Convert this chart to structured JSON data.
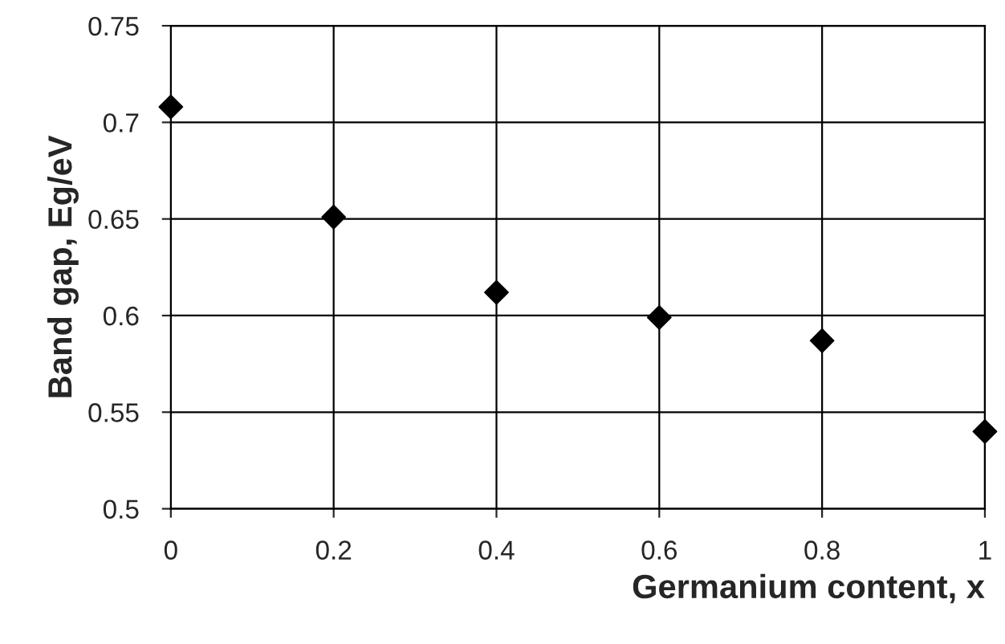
{
  "chart_data": {
    "type": "scatter",
    "xlabel": "Germanium content, x",
    "ylabel": "Band gap, Eg/eV",
    "x": [
      0,
      0.2,
      0.4,
      0.6,
      0.8,
      1
    ],
    "series": [
      {
        "color": "#000000",
        "values": [
          0.708,
          0.651,
          0.612,
          0.599,
          0.587,
          0.54
        ]
      }
    ],
    "xlim": [
      0,
      1
    ],
    "ylim": [
      0.5,
      0.75
    ],
    "xticks": [
      0,
      0.2,
      0.4,
      0.6,
      0.8,
      1
    ],
    "yticks": [
      0.5,
      0.55,
      0.6,
      0.65,
      0.7,
      0.75
    ],
    "grid": true,
    "marker": "diamond"
  }
}
